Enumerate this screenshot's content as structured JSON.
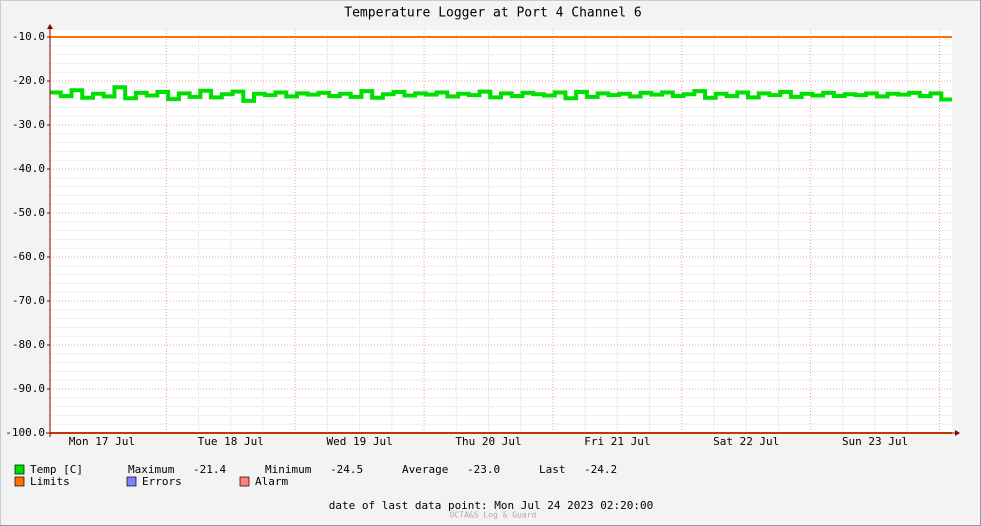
{
  "chart_data": {
    "type": "line",
    "title": "Temperature Logger at Port 4 Channel 6",
    "ylim": [
      -100,
      -8.4
    ],
    "yticks": [
      {
        "value": -10,
        "label": "-10.0"
      },
      {
        "value": -20,
        "label": "-20.0"
      },
      {
        "value": -30,
        "label": "-30.0"
      },
      {
        "value": -40,
        "label": "-40.0"
      },
      {
        "value": -50,
        "label": "-50.0"
      },
      {
        "value": -60,
        "label": "-60.0"
      },
      {
        "value": -70,
        "label": "-70.0"
      },
      {
        "value": -80,
        "label": "-80.0"
      },
      {
        "value": -90,
        "label": "-90.0"
      },
      {
        "value": -100,
        "label": "-100.0"
      }
    ],
    "xlim": [
      0,
      168
    ],
    "xticks": [
      {
        "value": 9.67,
        "label": "Mon 17 Jul"
      },
      {
        "value": 33.67,
        "label": "Tue 18 Jul"
      },
      {
        "value": 57.67,
        "label": "Wed 19 Jul"
      },
      {
        "value": 81.67,
        "label": "Thu 20 Jul"
      },
      {
        "value": 105.67,
        "label": "Fri 21 Jul"
      },
      {
        "value": 129.67,
        "label": "Sat 22 Jul"
      },
      {
        "value": 153.67,
        "label": "Sun 23 Jul"
      }
    ],
    "xgrid": [
      21.67,
      45.67,
      69.67,
      93.67,
      117.67,
      141.67,
      165.67
    ],
    "grid": true,
    "series": [
      {
        "name": "Temp [C]",
        "color": "#00e000",
        "values": [
          -22.6,
          -23.4,
          -22.1,
          -23.8,
          -22.9,
          -23.5,
          -21.4,
          -23.9,
          -22.7,
          -23.3,
          -22.5,
          -24.1,
          -22.8,
          -23.6,
          -22.2,
          -23.7,
          -23.0,
          -22.4,
          -24.5,
          -22.9,
          -23.2,
          -22.6,
          -23.5,
          -22.8,
          -23.1,
          -22.7,
          -23.4,
          -22.9,
          -23.6,
          -22.3,
          -23.8,
          -23.0,
          -22.5,
          -23.3,
          -22.8,
          -23.1,
          -22.6,
          -23.5,
          -22.9,
          -23.2,
          -22.4,
          -23.7,
          -22.8,
          -23.4,
          -22.7,
          -23.0,
          -23.3,
          -22.6,
          -23.9,
          -22.5,
          -23.6,
          -22.8,
          -23.2,
          -22.9,
          -23.5,
          -22.7,
          -23.1,
          -22.6,
          -23.4,
          -23.0,
          -22.3,
          -23.8,
          -22.9,
          -23.4,
          -22.6,
          -23.7,
          -22.8,
          -23.2,
          -22.5,
          -23.6,
          -22.9,
          -23.3,
          -22.7,
          -23.4,
          -23.0,
          -23.2,
          -22.8,
          -23.5,
          -22.9,
          -23.1,
          -22.7,
          -23.4,
          -22.8,
          -24.2
        ]
      },
      {
        "name": "Limits",
        "color": "#ff7000",
        "values": [
          -10,
          -100
        ]
      }
    ],
    "legend_extra": [
      {
        "name": "Errors",
        "color": "#7f7fff"
      },
      {
        "name": "Alarm",
        "color": "#ff7f7f"
      }
    ],
    "stats": [
      {
        "label": "Maximum",
        "value": -21.4
      },
      {
        "label": "Minimum",
        "value": -24.5
      },
      {
        "label": "Average",
        "value": -23,
        "value_label": "-23.0"
      },
      {
        "label": "Last",
        "value": -24.2
      }
    ],
    "footer": "date of last data point:  Mon Jul 24 2023 02:20:00",
    "watermark": "OCTA&S Log & Guard"
  }
}
